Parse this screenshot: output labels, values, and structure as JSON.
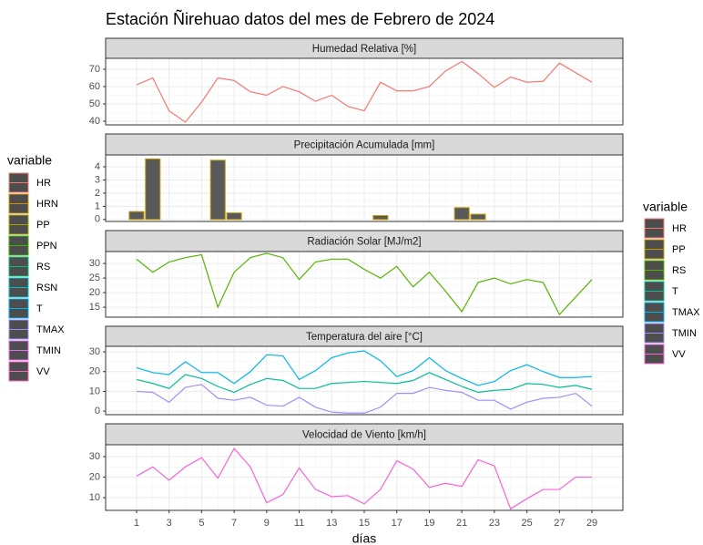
{
  "title": "Estación Ñirehuao datos del mes de Febrero de 2024",
  "xlabel": "días",
  "legend_left": {
    "title": "variable",
    "items": [
      {
        "name": "HR",
        "color": "#f8766d"
      },
      {
        "name": "HRN",
        "color": "#d89000"
      },
      {
        "name": "PP",
        "color": "#a3a500"
      },
      {
        "name": "PPN",
        "color": "#39b600"
      },
      {
        "name": "RS",
        "color": "#00bf7d"
      },
      {
        "name": "RSN",
        "color": "#00bfc4"
      },
      {
        "name": "T",
        "color": "#00b0f6"
      },
      {
        "name": "TMAX",
        "color": "#9590ff"
      },
      {
        "name": "TMIN",
        "color": "#e76bf3"
      },
      {
        "name": "VV",
        "color": "#ff62bc"
      }
    ]
  },
  "legend_right_title": "variable",
  "chart_data": [
    {
      "type": "line",
      "title": "Humedad Relativa [%]",
      "x": [
        1,
        2,
        3,
        4,
        5,
        6,
        7,
        8,
        9,
        10,
        11,
        12,
        13,
        14,
        15,
        16,
        17,
        18,
        19,
        20,
        21,
        22,
        23,
        24,
        25,
        26,
        27,
        28,
        29
      ],
      "xlim": [
        -0.9,
        30.9
      ],
      "xticks": [
        1,
        3,
        5,
        7,
        9,
        11,
        13,
        15,
        17,
        19,
        21,
        23,
        25,
        27,
        29
      ],
      "ylim": [
        37.9,
        76.3
      ],
      "yticks": [
        40,
        50,
        60,
        70
      ],
      "grid": true,
      "series": [
        {
          "name": "HR",
          "color": "#f8766d",
          "values": [
            61,
            65,
            46,
            39.5,
            51,
            65,
            63.5,
            57,
            55,
            60,
            57,
            51.5,
            55,
            48.5,
            46,
            62.5,
            57.5,
            57.5,
            60,
            69,
            74.5,
            67.5,
            59.5,
            65.5,
            62.5,
            63,
            73.5,
            68,
            62.5
          ]
        }
      ]
    },
    {
      "type": "bar",
      "title": "Precipitación Acumulada [mm]",
      "x": [
        1,
        2,
        3,
        4,
        5,
        6,
        7,
        8,
        9,
        10,
        11,
        12,
        13,
        14,
        15,
        16,
        17,
        18,
        19,
        20,
        21,
        22,
        23,
        24,
        25,
        26,
        27,
        28,
        29
      ],
      "xlim": [
        -0.9,
        30.9
      ],
      "xticks": [
        1,
        3,
        5,
        7,
        9,
        11,
        13,
        15,
        17,
        19,
        21,
        23,
        25,
        27,
        29
      ],
      "ylim": [
        -0.15,
        4.9
      ],
      "yticks": [
        0,
        1,
        2,
        3,
        4
      ],
      "grid": true,
      "bar_fill": "#595959",
      "series": [
        {
          "name": "PP",
          "color": "#c49a00",
          "values": [
            0.6,
            4.6,
            0,
            0,
            0,
            4.5,
            0.5,
            0,
            0,
            0,
            0,
            0,
            0,
            0,
            0,
            0.3,
            0,
            0,
            0,
            0,
            0.9,
            0.4,
            0,
            0,
            0,
            0,
            0,
            0,
            0
          ]
        }
      ]
    },
    {
      "type": "line",
      "title": "Radiación Solar [MJ/m2]",
      "x": [
        1,
        2,
        3,
        4,
        5,
        6,
        7,
        8,
        9,
        10,
        11,
        12,
        13,
        14,
        15,
        16,
        17,
        18,
        19,
        20,
        21,
        22,
        23,
        24,
        25,
        26,
        27,
        28,
        29
      ],
      "xlim": [
        -0.9,
        30.9
      ],
      "xticks": [
        1,
        3,
        5,
        7,
        9,
        11,
        13,
        15,
        17,
        19,
        21,
        23,
        25,
        27,
        29
      ],
      "ylim": [
        11.6,
        34.1
      ],
      "yticks": [
        15,
        20,
        25,
        30
      ],
      "grid": true,
      "series": [
        {
          "name": "RS",
          "color": "#53b400",
          "values": [
            31.5,
            27,
            30.5,
            32,
            33,
            15,
            27,
            32,
            33.5,
            32,
            24.5,
            30.5,
            31.5,
            31.5,
            28,
            25,
            29,
            22,
            27,
            20.5,
            13.5,
            23.5,
            25,
            23,
            24.5,
            23.5,
            12.5,
            18.5,
            24.5
          ]
        }
      ]
    },
    {
      "type": "line",
      "title": "Temperatura del aire [°C]",
      "x": [
        1,
        2,
        3,
        4,
        5,
        6,
        7,
        8,
        9,
        10,
        11,
        12,
        13,
        14,
        15,
        16,
        17,
        18,
        19,
        20,
        21,
        22,
        23,
        24,
        25,
        26,
        27,
        28,
        29
      ],
      "xlim": [
        -0.9,
        30.9
      ],
      "xticks": [
        1,
        3,
        5,
        7,
        9,
        11,
        13,
        15,
        17,
        19,
        21,
        23,
        25,
        27,
        29
      ],
      "ylim": [
        -1.8,
        32.8
      ],
      "yticks": [
        0,
        10,
        20,
        30
      ],
      "grid": true,
      "series": [
        {
          "name": "T",
          "color": "#00c094",
          "values": [
            16,
            14,
            11.5,
            18.5,
            16.5,
            12.5,
            9.5,
            13.5,
            16.5,
            15.5,
            11.5,
            11.5,
            14,
            14.5,
            15,
            14.5,
            14,
            15.5,
            19.5,
            16,
            12.5,
            9.5,
            10.5,
            11,
            14,
            13.5,
            12,
            13,
            11
          ]
        },
        {
          "name": "TMAX",
          "color": "#00b6eb",
          "values": [
            22,
            19.5,
            18.5,
            25,
            19.5,
            19.5,
            14,
            20,
            28.5,
            28,
            16,
            20.5,
            27,
            29.5,
            30.5,
            25.5,
            17.5,
            20.5,
            27,
            20.5,
            16.5,
            13,
            15,
            20.5,
            23.5,
            20,
            17,
            17,
            17.5
          ]
        },
        {
          "name": "TMIN",
          "color": "#a58aff",
          "values": [
            10,
            9.5,
            4.5,
            12,
            13.5,
            6.5,
            5.5,
            7,
            3,
            2.5,
            7,
            2,
            -0.5,
            -1,
            -1,
            2,
            9,
            9,
            12,
            10.5,
            9.5,
            5.5,
            5.5,
            1,
            4.5,
            6.5,
            7,
            9,
            2.5
          ]
        }
      ]
    },
    {
      "type": "line",
      "title": "Velocidad de Viento [km/h]",
      "x": [
        1,
        2,
        3,
        4,
        5,
        6,
        7,
        8,
        9,
        10,
        11,
        12,
        13,
        14,
        15,
        16,
        17,
        18,
        19,
        20,
        21,
        22,
        23,
        24,
        25,
        26,
        27,
        28,
        29
      ],
      "xlim": [
        -0.9,
        30.9
      ],
      "xticks": [
        1,
        3,
        5,
        7,
        9,
        11,
        13,
        15,
        17,
        19,
        21,
        23,
        25,
        27,
        29
      ],
      "ylim": [
        3.8,
        35.8
      ],
      "yticks": [
        10,
        20,
        30
      ],
      "grid": true,
      "series": [
        {
          "name": "VV",
          "color": "#fb61d7",
          "values": [
            20.5,
            25,
            18.5,
            25,
            29.5,
            19.5,
            34,
            25,
            7.5,
            11.5,
            24.5,
            14,
            10.5,
            11,
            7,
            14,
            28,
            24,
            15,
            17,
            15.5,
            28.5,
            25.5,
            4.5,
            9.5,
            14,
            14,
            20,
            20
          ]
        }
      ]
    }
  ]
}
